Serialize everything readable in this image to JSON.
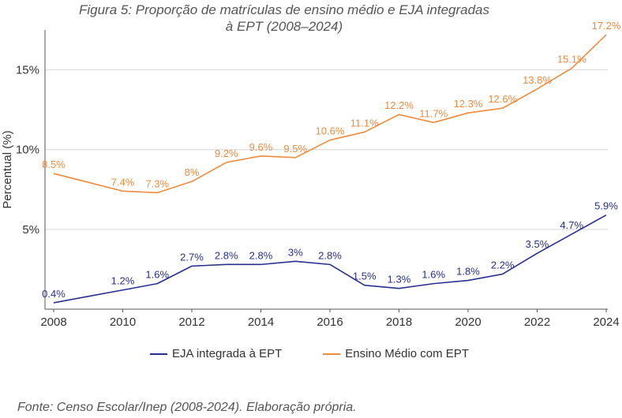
{
  "chart_data": {
    "type": "line",
    "title_line1": "Figura 5: Proporção de matrículas de ensino médio e EJA integradas",
    "title_line2": "à EPT (2008–2024)",
    "ylabel": "Percentual (%)",
    "xlabel": "",
    "ylim": [
      0,
      17.5
    ],
    "y_ticks": [
      {
        "value": 5,
        "label": "5%"
      },
      {
        "value": 10,
        "label": "10%"
      },
      {
        "value": 15,
        "label": "15%"
      }
    ],
    "x": [
      2008,
      2009,
      2010,
      2011,
      2012,
      2013,
      2014,
      2015,
      2016,
      2017,
      2018,
      2019,
      2020,
      2021,
      2022,
      2023,
      2024
    ],
    "x_ticks": [
      2008,
      2010,
      2012,
      2014,
      2016,
      2018,
      2020,
      2022,
      2024
    ],
    "grid": "horizontal",
    "legend_position": "bottom",
    "series": [
      {
        "name": "EJA integrada à EPT",
        "color": "#27308f",
        "values": [
          0.4,
          0.8,
          1.2,
          1.6,
          2.7,
          2.8,
          2.8,
          3.0,
          2.8,
          1.5,
          1.3,
          1.6,
          1.8,
          2.2,
          3.5,
          4.7,
          5.9
        ],
        "labels": [
          "0.4%",
          "",
          "1.2%",
          "1.6%",
          "2.7%",
          "2.8%",
          "2.8%",
          "3%",
          "2.8%",
          "1.5%",
          "1.3%",
          "1.6%",
          "1.8%",
          "2.2%",
          "3.5%",
          "4.7%",
          "5.9%"
        ]
      },
      {
        "name": "Ensino Médio com EPT",
        "color": "#f08a3c",
        "values": [
          8.5,
          7.95,
          7.4,
          7.3,
          8.0,
          9.2,
          9.6,
          9.5,
          10.6,
          11.1,
          12.2,
          11.7,
          12.3,
          12.6,
          13.8,
          15.1,
          17.2
        ],
        "labels": [
          "8.5%",
          "",
          "7.4%",
          "7.3%",
          "8%",
          "9.2%",
          "9.6%",
          "9.5%",
          "10.6%",
          "11.1%",
          "12.2%",
          "11.7%",
          "12.3%",
          "12.6%",
          "13.8%",
          "15.1%",
          "17.2%"
        ]
      }
    ],
    "source": "Fonte: Censo Escolar/Inep (2008-2024). Elaboração própria."
  }
}
